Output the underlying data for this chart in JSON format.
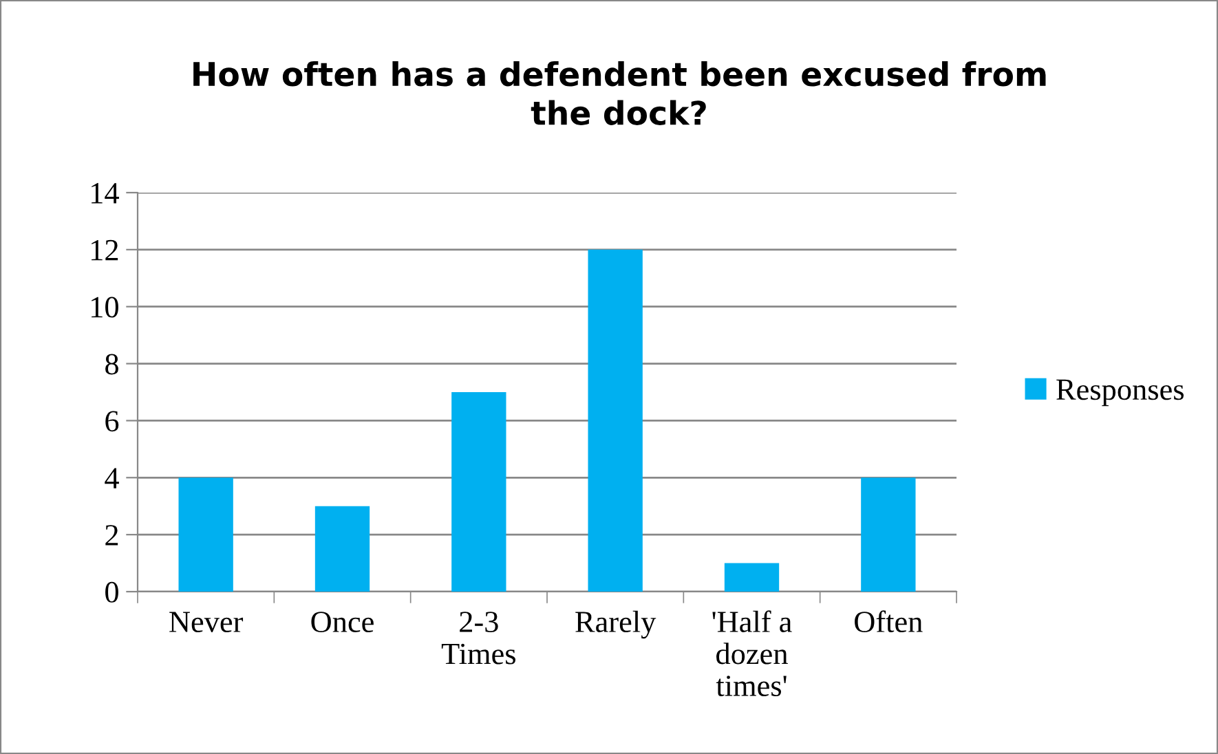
{
  "chart_data": {
    "type": "bar",
    "title": "How often has a defendent been excused from\nthe dock?",
    "categories": [
      "Never",
      "Once",
      "2-3\nTimes",
      "Rarely",
      "'Half a\ndozen\ntimes'",
      "Often"
    ],
    "series": [
      {
        "name": "Responses",
        "color": "#00b0f0",
        "values": [
          4,
          3,
          7,
          12,
          1,
          4
        ]
      }
    ],
    "ylim": [
      0,
      14
    ],
    "yticks": [
      0,
      2,
      4,
      6,
      8,
      10,
      12,
      14
    ],
    "grid": "y",
    "legend": "right"
  }
}
